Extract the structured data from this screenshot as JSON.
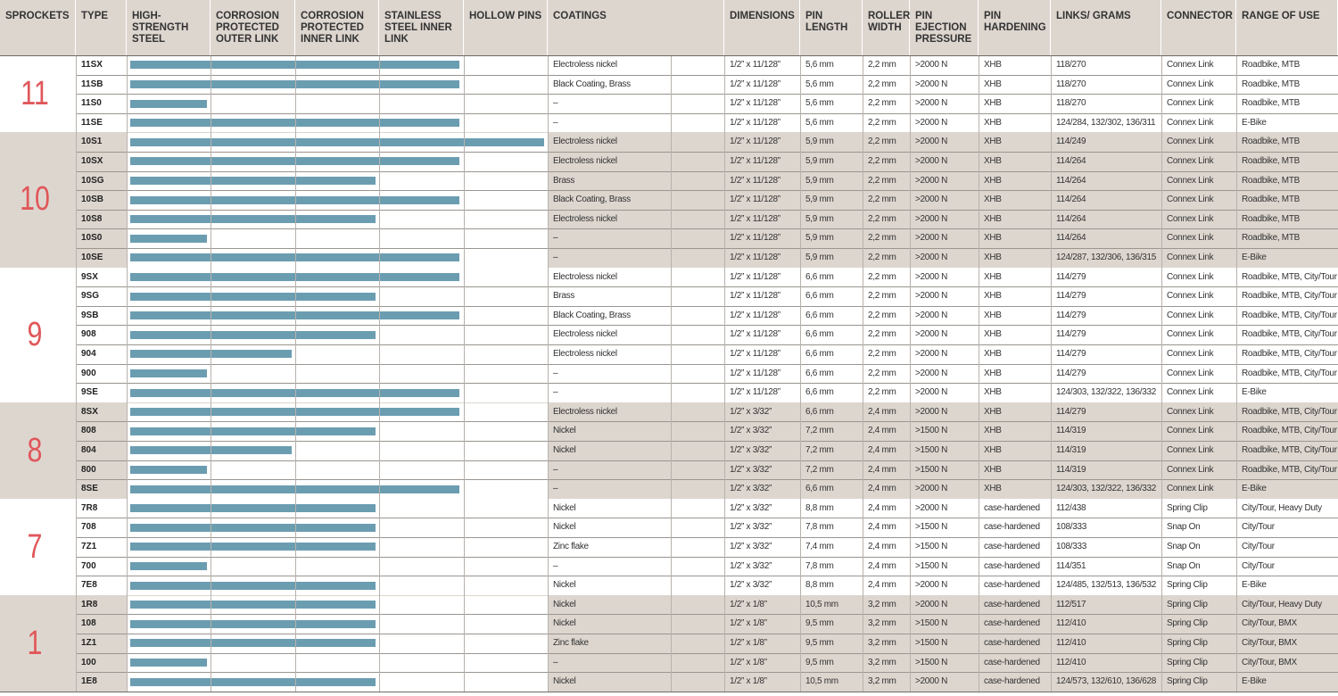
{
  "header": [
    "SPROCKETS",
    "TYPE",
    "HIGH-STRENGTH STEEL",
    "CORROSION PROTECTED OUTER LINK",
    "CORROSION PROTECTED INNER LINK",
    "STAINLESS STEEL INNER LINK",
    "HOLLOW PINS",
    "COATINGS",
    "DIMENSIONS",
    "PIN LENGTH",
    "ROLLER WIDTH",
    "PIN EJECTION PRESSURE",
    "PIN HARDENING",
    "LINKS/ GRAMS",
    "CONNECTOR",
    "RANGE OF USE"
  ],
  "groups": [
    {
      "sprockets": "11",
      "rows": [
        [
          "11SX",
          4,
          "Electroless nickel",
          "1/2” x 11/128”",
          "5,6 mm",
          "2,2 mm",
          ">2000 N",
          "XHB",
          "118/270",
          "Connex Link",
          "Roadbike, MTB"
        ],
        [
          "11SB",
          4,
          "Black Coating, Brass",
          "1/2” x 11/128”",
          "5,6 mm",
          "2,2 mm",
          ">2000 N",
          "XHB",
          "118/270",
          "Connex Link",
          "Roadbike, MTB"
        ],
        [
          "11S0",
          1,
          "–",
          "1/2” x 11/128”",
          "5,6 mm",
          "2,2 mm",
          ">2000 N",
          "XHB",
          "118/270",
          "Connex Link",
          "Roadbike, MTB"
        ],
        [
          "11SE",
          4,
          "–",
          "1/2” x 11/128”",
          "5,6 mm",
          "2,2 mm",
          ">2000 N",
          "XHB",
          "124/284, 132/302, 136/311",
          "Connex Link",
          "E-Bike"
        ]
      ]
    },
    {
      "sprockets": "10",
      "rows": [
        [
          "10S1",
          5,
          "Electroless nickel",
          "1/2” x 11/128”",
          "5,9 mm",
          "2,2 mm",
          ">2000 N",
          "XHB",
          "114/249",
          "Connex Link",
          "Roadbike, MTB"
        ],
        [
          "10SX",
          4,
          "Electroless nickel",
          "1/2” x 11/128”",
          "5,9 mm",
          "2,2 mm",
          ">2000 N",
          "XHB",
          "114/264",
          "Connex Link",
          "Roadbike, MTB"
        ],
        [
          "10SG",
          3,
          "Brass",
          "1/2” x 11/128”",
          "5,9 mm",
          "2,2 mm",
          ">2000 N",
          "XHB",
          "114/264",
          "Connex Link",
          "Roadbike, MTB"
        ],
        [
          "10SB",
          4,
          "Black Coating, Brass",
          "1/2” x 11/128”",
          "5,9 mm",
          "2,2 mm",
          ">2000 N",
          "XHB",
          "114/264",
          "Connex Link",
          "Roadbike, MTB"
        ],
        [
          "10S8",
          3,
          "Electroless nickel",
          "1/2” x 11/128”",
          "5,9 mm",
          "2,2 mm",
          ">2000 N",
          "XHB",
          "114/264",
          "Connex Link",
          "Roadbike, MTB"
        ],
        [
          "10S0",
          1,
          "–",
          "1/2” x 11/128”",
          "5,9 mm",
          "2,2 mm",
          ">2000 N",
          "XHB",
          "114/264",
          "Connex Link",
          "Roadbike, MTB"
        ],
        [
          "10SE",
          4,
          "–",
          "1/2” x 11/128”",
          "5,9 mm",
          "2,2 mm",
          ">2000 N",
          "XHB",
          "124/287, 132/306, 136/315",
          "Connex Link",
          "E-Bike"
        ]
      ]
    },
    {
      "sprockets": "9",
      "rows": [
        [
          "9SX",
          4,
          "Electroless nickel",
          "1/2” x 11/128”",
          "6,6 mm",
          "2,2 mm",
          ">2000 N",
          "XHB",
          "114/279",
          "Connex Link",
          "Roadbike, MTB, City/Tour"
        ],
        [
          "9SG",
          3,
          "Brass",
          "1/2” x 11/128”",
          "6,6 mm",
          "2,2 mm",
          ">2000 N",
          "XHB",
          "114/279",
          "Connex Link",
          "Roadbike, MTB, City/Tour"
        ],
        [
          "9SB",
          4,
          "Black Coating, Brass",
          "1/2” x 11/128”",
          "6,6 mm",
          "2,2 mm",
          ">2000 N",
          "XHB",
          "114/279",
          "Connex Link",
          "Roadbike, MTB, City/Tour"
        ],
        [
          "908",
          3,
          "Electroless nickel",
          "1/2” x 11/128”",
          "6,6 mm",
          "2,2 mm",
          ">2000 N",
          "XHB",
          "114/279",
          "Connex Link",
          "Roadbike, MTB, City/Tour"
        ],
        [
          "904",
          2,
          "Electroless nickel",
          "1/2” x 11/128”",
          "6,6 mm",
          "2,2 mm",
          ">2000 N",
          "XHB",
          "114/279",
          "Connex Link",
          "Roadbike, MTB, City/Tour"
        ],
        [
          "900",
          1,
          "–",
          "1/2” x 11/128”",
          "6,6 mm",
          "2,2 mm",
          ">2000 N",
          "XHB",
          "114/279",
          "Connex Link",
          "Roadbike, MTB, City/Tour"
        ],
        [
          "9SE",
          4,
          "–",
          "1/2” x 11/128”",
          "6,6 mm",
          "2,2 mm",
          ">2000 N",
          "XHB",
          "124/303, 132/322, 136/332",
          "Connex Link",
          "E-Bike"
        ]
      ]
    },
    {
      "sprockets": "8",
      "rows": [
        [
          "8SX",
          4,
          "Electroless nickel",
          "1/2” x 3/32”",
          "6,6 mm",
          "2,4 mm",
          ">2000 N",
          "XHB",
          "114/279",
          "Connex Link",
          "Roadbike, MTB, City/Tour"
        ],
        [
          "808",
          3,
          "Nickel",
          "1/2” x 3/32”",
          "7,2 mm",
          "2,4 mm",
          ">1500 N",
          "XHB",
          "114/319",
          "Connex Link",
          "Roadbike, MTB, City/Tour"
        ],
        [
          "804",
          2,
          "Nickel",
          "1/2” x 3/32”",
          "7,2 mm",
          "2,4 mm",
          ">1500 N",
          "XHB",
          "114/319",
          "Connex Link",
          "Roadbike, MTB, City/Tour"
        ],
        [
          "800",
          1,
          "–",
          "1/2” x 3/32”",
          "7,2 mm",
          "2,4 mm",
          ">1500 N",
          "XHB",
          "114/319",
          "Connex Link",
          "Roadbike, MTB, City/Tour"
        ],
        [
          "8SE",
          4,
          "–",
          "1/2” x 3/32”",
          "6,6 mm",
          "2,4 mm",
          ">2000 N",
          "XHB",
          "124/303, 132/322, 136/332",
          "Connex Link",
          "E-Bike"
        ]
      ]
    },
    {
      "sprockets": "7",
      "rows": [
        [
          "7R8",
          3,
          "Nickel",
          "1/2” x 3/32”",
          "8,8 mm",
          "2,4 mm",
          ">2000 N",
          "case-hardened",
          "112/438",
          "Spring Clip",
          "City/Tour, Heavy Duty"
        ],
        [
          "708",
          3,
          "Nickel",
          "1/2” x 3/32”",
          "7,8 mm",
          "2,4 mm",
          ">1500 N",
          "case-hardened",
          "108/333",
          "Snap On",
          "City/Tour"
        ],
        [
          "7Z1",
          3,
          "Zinc flake",
          "1/2” x 3/32”",
          "7,4 mm",
          "2,4 mm",
          ">1500 N",
          "case-hardened",
          "108/333",
          "Snap On",
          "City/Tour"
        ],
        [
          "700",
          1,
          "–",
          "1/2” x 3/32”",
          "7,8 mm",
          "2,4 mm",
          ">1500 N",
          "case-hardened",
          "114/351",
          "Snap On",
          "City/Tour"
        ],
        [
          "7E8",
          3,
          "Nickel",
          "1/2” x 3/32”",
          "8,8 mm",
          "2,4 mm",
          ">2000 N",
          "case-hardened",
          "124/485, 132/513, 136/532",
          "Spring Clip",
          "E-Bike"
        ]
      ]
    },
    {
      "sprockets": "1",
      "rows": [
        [
          "1R8",
          3,
          "Nickel",
          "1/2” x 1/8”",
          "10,5 mm",
          "3,2 mm",
          ">2000 N",
          "case-hardened",
          "112/517",
          "Spring Clip",
          "City/Tour, Heavy Duty"
        ],
        [
          "108",
          3,
          "Nickel",
          "1/2” x 1/8”",
          "9,5 mm",
          "3,2 mm",
          ">1500 N",
          "case-hardened",
          "112/410",
          "Spring Clip",
          "City/Tour, BMX"
        ],
        [
          "1Z1",
          3,
          "Zinc flake",
          "1/2” x 1/8”",
          "9,5 mm",
          "3,2 mm",
          ">1500 N",
          "case-hardened",
          "112/410",
          "Spring Clip",
          "City/Tour, BMX"
        ],
        [
          "100",
          1,
          "–",
          "1/2” x 1/8”",
          "9,5 mm",
          "3,2 mm",
          ">1500 N",
          "case-hardened",
          "112/410",
          "Spring Clip",
          "City/Tour, BMX"
        ],
        [
          "1E8",
          3,
          "Nickel",
          "1/2” x 1/8”",
          "10,5 mm",
          "3,2 mm",
          ">2000 N",
          "case-hardened",
          "124/573, 132/610, 136/628",
          "Spring Clip",
          "E-Bike"
        ]
      ]
    }
  ]
}
